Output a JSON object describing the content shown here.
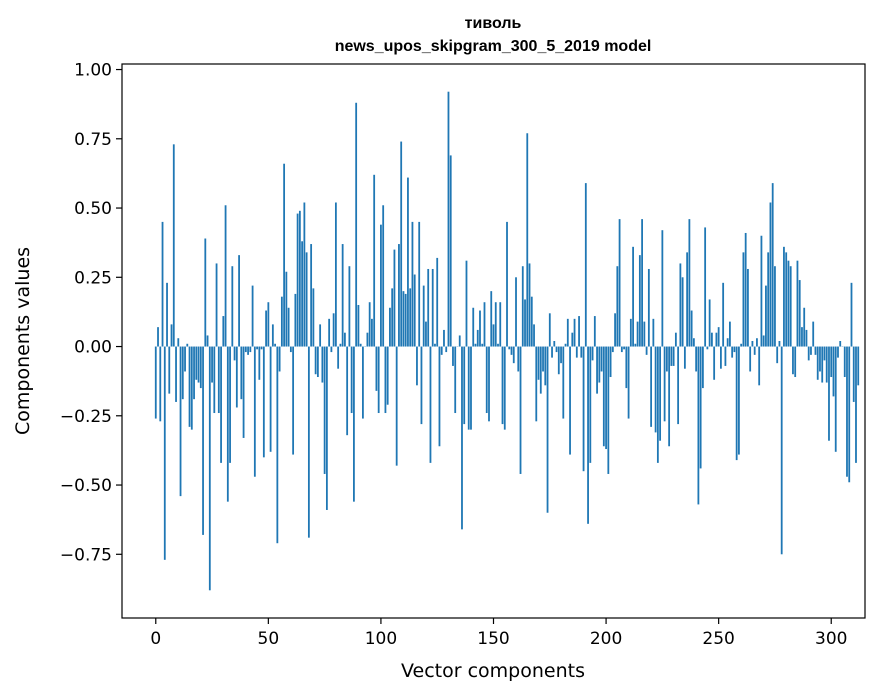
{
  "chart_data": {
    "type": "bar",
    "title_line1": "тиволь",
    "title_line2": "news_upos_skipgram_300_5_2019 model",
    "xlabel": "Vector components",
    "ylabel": "Components values",
    "xlim": [
      -15,
      315
    ],
    "ylim": [
      -0.98,
      1.02
    ],
    "xticks": [
      0,
      50,
      100,
      150,
      200,
      250,
      300
    ],
    "xtick_labels": [
      "0",
      "50",
      "100",
      "150",
      "200",
      "250",
      "300"
    ],
    "yticks": [
      -0.75,
      -0.5,
      -0.25,
      0.0,
      0.25,
      0.5,
      0.75,
      1.0
    ],
    "ytick_labels": [
      "−0.75",
      "−0.50",
      "−0.25",
      "0.00",
      "0.25",
      "0.50",
      "0.75",
      "1.00"
    ],
    "bar_color": "#1f77b4",
    "values": [
      -0.26,
      0.07,
      -0.27,
      0.45,
      -0.77,
      0.23,
      -0.17,
      0.08,
      0.73,
      -0.2,
      0.03,
      -0.54,
      -0.19,
      -0.09,
      0.01,
      -0.29,
      -0.3,
      -0.19,
      -0.12,
      -0.13,
      -0.15,
      -0.68,
      0.39,
      0.04,
      -0.88,
      -0.13,
      -0.24,
      0.3,
      -0.24,
      -0.42,
      0.11,
      0.51,
      -0.56,
      -0.42,
      0.29,
      -0.05,
      -0.22,
      0.33,
      -0.19,
      -0.33,
      -0.02,
      -0.03,
      -0.02,
      0.22,
      -0.47,
      -0.01,
      -0.12,
      -0.01,
      -0.4,
      0.13,
      0.16,
      -0.38,
      0.08,
      0.01,
      -0.71,
      -0.09,
      0.18,
      0.66,
      0.27,
      0.14,
      -0.02,
      -0.39,
      0.19,
      0.48,
      0.49,
      0.38,
      0.52,
      0.34,
      -0.69,
      0.37,
      0.21,
      -0.1,
      -0.11,
      0.08,
      -0.13,
      -0.46,
      -0.59,
      0.1,
      -0.02,
      0.12,
      0.52,
      -0.08,
      0.01,
      0.37,
      0.05,
      -0.32,
      0.29,
      -0.24,
      -0.56,
      0.88,
      0.15,
      0.01,
      -0.26,
      0.0,
      0.05,
      0.16,
      0.1,
      0.62,
      -0.16,
      -0.24,
      0.44,
      0.51,
      -0.24,
      -0.21,
      0.14,
      0.21,
      0.35,
      -0.43,
      0.37,
      0.74,
      0.2,
      0.19,
      0.61,
      0.21,
      0.45,
      0.26,
      -0.14,
      0.45,
      -0.28,
      0.22,
      0.09,
      0.28,
      -0.42,
      0.28,
      0.01,
      0.32,
      -0.36,
      -0.03,
      0.06,
      -0.02,
      0.92,
      0.69,
      -0.07,
      -0.24,
      0.0,
      0.04,
      -0.66,
      -0.28,
      0.31,
      -0.3,
      -0.3,
      0.14,
      0.01,
      0.06,
      0.13,
      0.01,
      0.16,
      -0.24,
      -0.27,
      0.2,
      0.08,
      0.16,
      0.01,
      0.16,
      -0.28,
      -0.3,
      0.45,
      -0.01,
      -0.03,
      -0.06,
      0.25,
      -0.09,
      -0.46,
      0.29,
      0.17,
      0.77,
      0.3,
      0.18,
      0.08,
      -0.27,
      -0.12,
      -0.17,
      -0.09,
      -0.14,
      -0.6,
      0.12,
      -0.04,
      0.02,
      -0.02,
      -0.1,
      -0.06,
      -0.26,
      0.01,
      0.1,
      -0.39,
      0.05,
      0.1,
      -0.04,
      0.11,
      -0.04,
      -0.45,
      0.59,
      -0.64,
      -0.42,
      -0.05,
      0.11,
      -0.17,
      -0.13,
      -0.09,
      -0.36,
      -0.37,
      -0.46,
      -0.11,
      -0.02,
      0.12,
      0.29,
      0.46,
      -0.02,
      -0.01,
      -0.15,
      -0.26,
      0.1,
      0.36,
      0.01,
      0.09,
      0.33,
      0.46,
      0.09,
      -0.03,
      0.28,
      -0.29,
      0.1,
      -0.31,
      -0.42,
      -0.34,
      0.42,
      -0.27,
      -0.09,
      -0.36,
      -0.07,
      -0.07,
      0.05,
      -0.28,
      0.3,
      0.25,
      -0.08,
      0.34,
      0.46,
      0.13,
      0.03,
      -0.09,
      -0.57,
      -0.44,
      -0.15,
      0.43,
      -0.01,
      0.17,
      0.05,
      -0.12,
      0.05,
      0.07,
      -0.08,
      0.23,
      -0.07,
      0.03,
      0.09,
      -0.04,
      -0.02,
      -0.41,
      -0.39,
      0.01,
      0.34,
      0.41,
      0.28,
      -0.09,
      0.02,
      -0.03,
      0.03,
      -0.14,
      0.4,
      0.04,
      0.22,
      0.34,
      0.52,
      0.59,
      0.29,
      -0.06,
      0.02,
      -0.75,
      0.36,
      0.34,
      0.31,
      0.29,
      -0.1,
      -0.11,
      0.31,
      0.24,
      0.07,
      0.14,
      0.06,
      -0.05,
      -0.03,
      0.09,
      -0.03,
      -0.12,
      -0.09,
      -0.13,
      -0.05,
      -0.13,
      -0.34,
      -0.11,
      -0.18,
      -0.38,
      -0.04,
      0.02,
      0.0,
      -0.11,
      -0.47,
      -0.49,
      0.23,
      -0.2,
      -0.42,
      -0.14
    ]
  }
}
